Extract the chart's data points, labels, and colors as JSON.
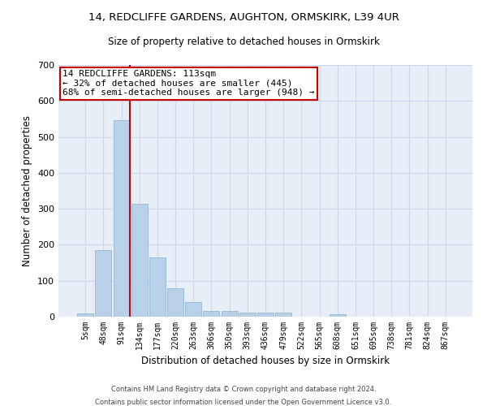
{
  "title": "14, REDCLIFFE GARDENS, AUGHTON, ORMSKIRK, L39 4UR",
  "subtitle": "Size of property relative to detached houses in Ormskirk",
  "xlabel": "Distribution of detached houses by size in Ormskirk",
  "ylabel": "Number of detached properties",
  "bar_color": "#b8d0e8",
  "bar_edge_color": "#8ab0d0",
  "background_color": "#e8eef6",
  "grid_color": "#d0d8e8",
  "categories": [
    "5sqm",
    "48sqm",
    "91sqm",
    "134sqm",
    "177sqm",
    "220sqm",
    "263sqm",
    "306sqm",
    "350sqm",
    "393sqm",
    "436sqm",
    "479sqm",
    "522sqm",
    "565sqm",
    "608sqm",
    "651sqm",
    "695sqm",
    "738sqm",
    "781sqm",
    "824sqm",
    "867sqm"
  ],
  "values": [
    8,
    185,
    547,
    315,
    165,
    78,
    40,
    16,
    16,
    11,
    11,
    11,
    0,
    0,
    7,
    0,
    0,
    0,
    0,
    0,
    0
  ],
  "ylim": [
    0,
    700
  ],
  "yticks": [
    0,
    100,
    200,
    300,
    400,
    500,
    600,
    700
  ],
  "property_line_x": 2.45,
  "annotation_text": "14 REDCLIFFE GARDENS: 113sqm\n← 32% of detached houses are smaller (445)\n68% of semi-detached houses are larger (948) →",
  "annotation_box_color": "#ffffff",
  "annotation_box_edge_color": "#cc0000",
  "red_line_color": "#cc0000",
  "footer1": "Contains HM Land Registry data © Crown copyright and database right 2024.",
  "footer2": "Contains public sector information licensed under the Open Government Licence v3.0."
}
